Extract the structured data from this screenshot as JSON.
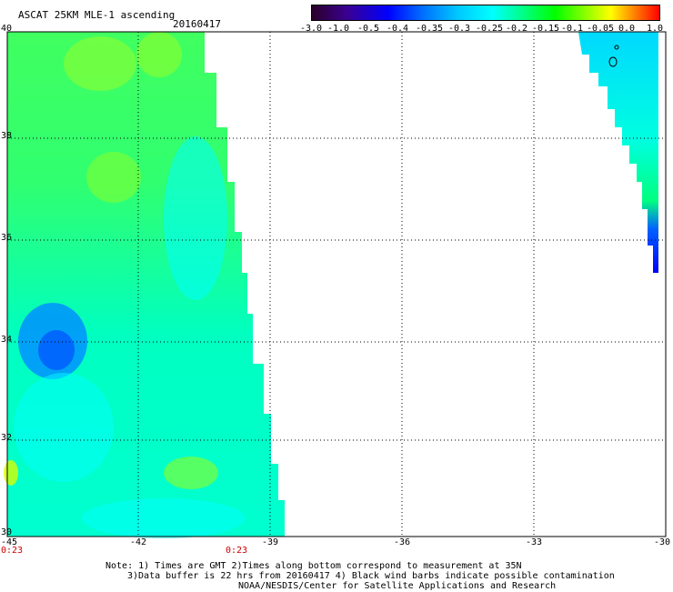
{
  "title": "ASCAT 25KM MLE-1 ascending",
  "date": "20160417",
  "colorbar": {
    "labels": [
      "-3.0",
      "-1.0",
      "-0.5",
      "-0.4",
      "-0.35",
      "-0.3",
      "-0.25",
      "-0.2",
      "-0.15",
      "-0.1",
      "-0.05",
      "0.0",
      "1.0"
    ]
  },
  "lat_labels": [
    "40",
    "38",
    "36",
    "34",
    "32",
    "30"
  ],
  "lon_labels": [
    "-45",
    "-42",
    "-39",
    "-36",
    "-33",
    "-30"
  ],
  "time_labels": [
    "0:23",
    "0:23"
  ],
  "notes": {
    "line1": "Note: 1) Times are GMT 2)Times along bottom correspond to measurement at 35N",
    "line2": "3)Data buffer is 22 hrs from 20160417 4) Black wind barbs indicate possible contamination",
    "line3": "NOAA/NESDIS/Center for Satellite Applications and Research"
  }
}
